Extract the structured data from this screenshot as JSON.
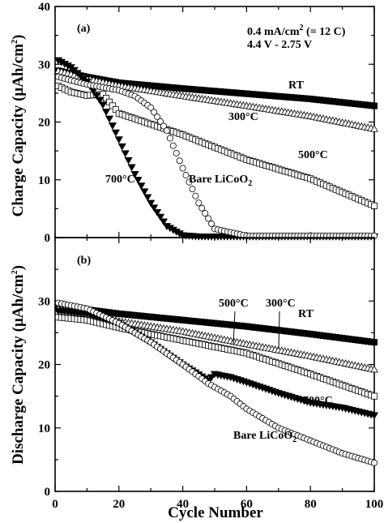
{
  "xlabel": "Cycle Number",
  "x_ticks": [
    "0",
    "20",
    "40",
    "60",
    "80",
    "100"
  ],
  "y_ticks": [
    "0",
    "10",
    "20",
    "30",
    "40"
  ],
  "chart_data": [
    {
      "type": "scatter",
      "panel": "(a)",
      "ylabel": "Charge Capacity (μAh/cm²)",
      "ylabel_main": "Charge Capacity (μAh/cm",
      "ylabel_sup": "2",
      "ylabel_close": ")",
      "xlim": [
        0,
        100
      ],
      "ylim": [
        0,
        40
      ],
      "conditions": [
        "0.4 mA/cm² (= 12 C)",
        "4.4 V - 2.75 V"
      ],
      "condition_parts": {
        "rate_main": "0.4 mA/cm",
        "rate_sup": "2",
        "rate_rest": " (= 12 C)",
        "voltage": "4.4 V - 2.75 V"
      },
      "series": [
        {
          "label": "RT",
          "marker": "filled-square",
          "x": [
            0,
            10,
            20,
            40,
            60,
            80,
            100
          ],
          "y": [
            29.0,
            27.8,
            26.8,
            25.8,
            24.9,
            24.0,
            22.8
          ]
        },
        {
          "label": "300°C",
          "marker": "open-triangle-up",
          "x": [
            0,
            10,
            20,
            40,
            60,
            80,
            100
          ],
          "y": [
            29.0,
            27.5,
            26.3,
            24.5,
            22.8,
            21.0,
            18.8
          ]
        },
        {
          "label": "500°C",
          "marker": "open-square",
          "x": [
            0,
            5,
            10,
            15,
            20,
            40,
            60,
            80,
            100
          ],
          "y": [
            26.5,
            25.2,
            24.6,
            24.8,
            21.5,
            17.8,
            13.5,
            10.2,
            5.5
          ]
        },
        {
          "label": "700°C",
          "marker": "filled-triangle-down",
          "x": [
            0,
            5,
            10,
            15,
            20,
            25,
            30,
            35,
            40,
            45,
            100
          ],
          "y": [
            31.0,
            29.5,
            27.0,
            23.0,
            17.0,
            11.0,
            6.0,
            2.0,
            0.4,
            0.2,
            0.2
          ]
        },
        {
          "label": "Bare LiCoO₂",
          "label_main": "Bare LiCoO",
          "label_sub": "2",
          "marker": "open-circle",
          "x": [
            0,
            5,
            10,
            20,
            25,
            30,
            35,
            40,
            45,
            50,
            60,
            100
          ],
          "y": [
            28.0,
            27.2,
            26.5,
            25.5,
            24.5,
            22.5,
            18.5,
            12.0,
            6.0,
            1.5,
            0.3,
            0.3
          ]
        }
      ]
    },
    {
      "type": "scatter",
      "panel": "(b)",
      "ylabel": "Discharge Capacity (μAh/cm²)",
      "ylabel_main": "Discharge Capacity (μAh/cm",
      "ylabel_sup": "2",
      "ylabel_close": ")",
      "xlim": [
        0,
        100
      ],
      "ylim": [
        0,
        40
      ],
      "series": [
        {
          "label": "RT",
          "marker": "filled-square",
          "x": [
            0,
            20,
            40,
            60,
            80,
            100
          ],
          "y": [
            29.3,
            28.0,
            27.0,
            26.0,
            24.8,
            23.5
          ]
        },
        {
          "label": "300°C",
          "marker": "open-triangle-up",
          "x": [
            0,
            10,
            20,
            40,
            60,
            80,
            100
          ],
          "y": [
            28.8,
            28.0,
            26.8,
            25.2,
            23.2,
            21.3,
            19.2
          ]
        },
        {
          "label": "500°C",
          "marker": "open-square",
          "x": [
            0,
            10,
            20,
            40,
            60,
            80,
            100
          ],
          "y": [
            27.5,
            27.0,
            25.8,
            23.8,
            21.8,
            18.5,
            15.0
          ]
        },
        {
          "label": "700°C",
          "marker": "filled-triangle-down",
          "x": [
            0,
            10,
            20,
            30,
            40,
            48,
            50,
            55,
            60,
            70,
            80,
            90,
            100
          ],
          "y": [
            28.5,
            28.0,
            26.5,
            23.5,
            20.0,
            17.5,
            18.5,
            18.0,
            17.2,
            15.5,
            14.0,
            13.2,
            12.0
          ]
        },
        {
          "label": "Bare LiCoO₂",
          "label_main": "Bare LiCoO",
          "label_sub": "2",
          "marker": "open-circle",
          "x": [
            0,
            10,
            20,
            30,
            40,
            48,
            55,
            60,
            70,
            80,
            90,
            100
          ],
          "y": [
            29.8,
            28.8,
            26.5,
            23.5,
            20.0,
            17.0,
            15.0,
            13.0,
            10.0,
            8.0,
            6.0,
            4.5
          ]
        }
      ]
    }
  ]
}
